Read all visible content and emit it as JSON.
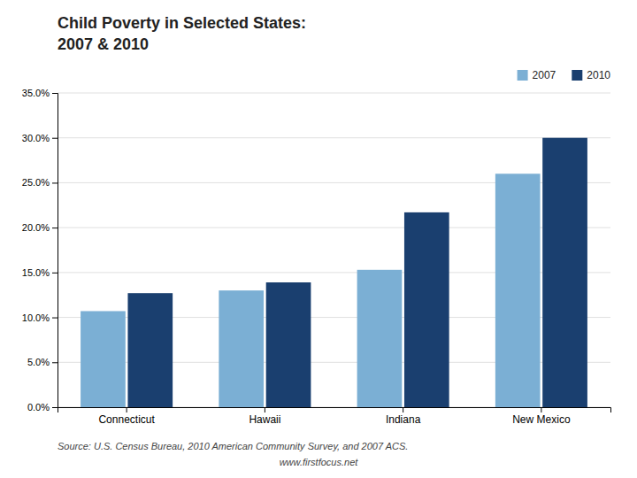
{
  "chart_data": {
    "type": "bar",
    "title": "Child Poverty in Selected States:",
    "subtitle": "2007 & 2010",
    "categories": [
      "Connecticut",
      "Hawaii",
      "Indiana",
      "New Mexico"
    ],
    "series": [
      {
        "name": "2007",
        "color": "#7BAFD4",
        "values": [
          0.107,
          0.13,
          0.153,
          0.26
        ]
      },
      {
        "name": "2010",
        "color": "#1A3F6F",
        "values": [
          0.127,
          0.139,
          0.217,
          0.3
        ]
      }
    ],
    "ylim": [
      0,
      0.35
    ],
    "yticks": [
      {
        "value": 0.0,
        "label": "0.0%"
      },
      {
        "value": 0.05,
        "label": "5.0%"
      },
      {
        "value": 0.1,
        "label": "10.0%"
      },
      {
        "value": 0.15,
        "label": "15.0%"
      },
      {
        "value": 0.2,
        "label": "20.0%"
      },
      {
        "value": 0.25,
        "label": "25.0%"
      },
      {
        "value": 0.3,
        "label": "30.0%"
      },
      {
        "value": 0.35,
        "label": "35.0%"
      }
    ],
    "grid": true,
    "legend": "upper right",
    "annotations": [
      "Source: U.S. Census Bureau, 2010 American Community Survey, and 2007 ACS.",
      "www.firstfocus.net"
    ]
  }
}
